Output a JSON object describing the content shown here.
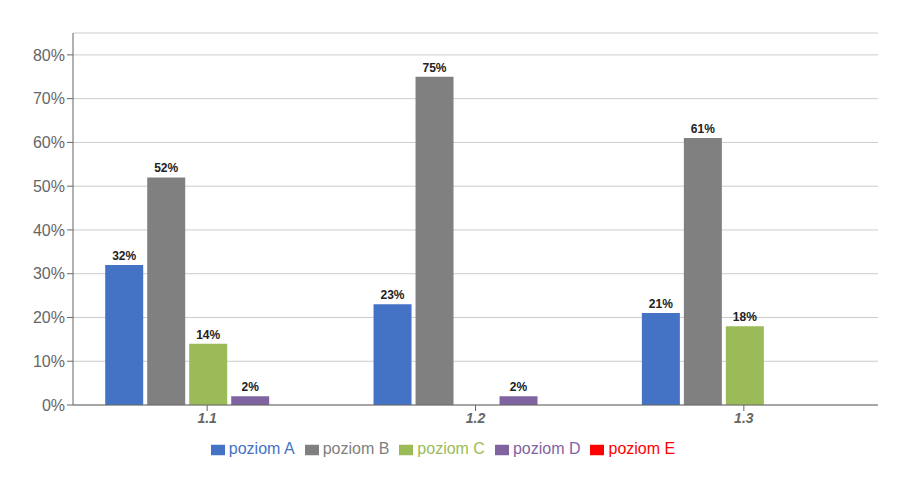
{
  "chart_data": {
    "type": "bar",
    "categories": [
      "1.1",
      "1.2",
      "1.3"
    ],
    "series": [
      {
        "name": "poziom A",
        "values": [
          32,
          23,
          21
        ],
        "value_labels": [
          "32%",
          "23%",
          "21%"
        ],
        "color": "#4472C4"
      },
      {
        "name": "poziom B",
        "values": [
          52,
          75,
          61
        ],
        "value_labels": [
          "52%",
          "75%",
          "61%"
        ],
        "color": "#808080"
      },
      {
        "name": "poziom C",
        "values": [
          14,
          0,
          18
        ],
        "value_labels": [
          "14%",
          null,
          "18%"
        ],
        "color": "#9BBB59"
      },
      {
        "name": "poziom D",
        "values": [
          2,
          2,
          0
        ],
        "value_labels": [
          "2%",
          "2%",
          null
        ],
        "color": "#8064A2"
      },
      {
        "name": "poziom E",
        "values": [
          0,
          0,
          0
        ],
        "value_labels": [
          null,
          null,
          null
        ],
        "color": "#FF0000"
      }
    ],
    "ylim": [
      0,
      85
    ],
    "yticks": [
      {
        "value": 0,
        "label": "0%"
      },
      {
        "value": 10,
        "label": "10%"
      },
      {
        "value": 20,
        "label": "20%"
      },
      {
        "value": 30,
        "label": "30%"
      },
      {
        "value": 40,
        "label": "40%"
      },
      {
        "value": 50,
        "label": "50%"
      },
      {
        "value": 60,
        "label": "60%"
      },
      {
        "value": 70,
        "label": "70%"
      },
      {
        "value": 80,
        "label": "80%"
      }
    ],
    "grid": true,
    "legend": "bottom",
    "data_labels": true
  }
}
